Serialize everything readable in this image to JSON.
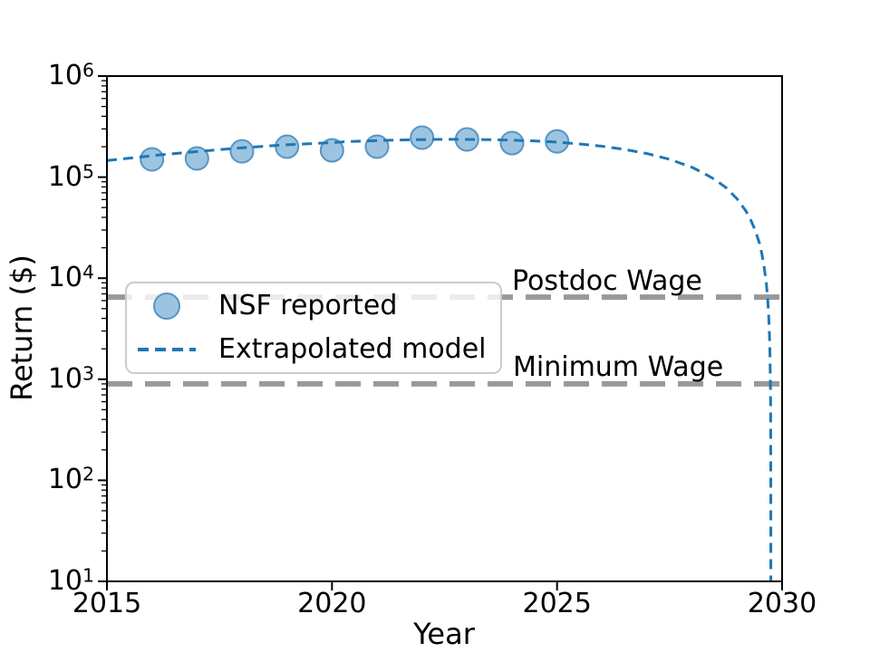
{
  "figure": {
    "xlabel": "Year",
    "ylabel": "Return ($)",
    "x_ticks": [
      2015,
      2020,
      2025,
      2030
    ],
    "y_tick_base": "10",
    "y_tick_exponents": [
      6,
      5,
      4,
      3,
      2,
      1
    ],
    "legend": {
      "items": [
        {
          "label": "NSF reported",
          "marker": "circle"
        },
        {
          "label": "Extrapolated model",
          "marker": "dashed-line"
        }
      ]
    },
    "annotations": [
      {
        "text": "Postdoc Wage",
        "value": 6500
      },
      {
        "text": "Minimum Wage",
        "value": 900
      }
    ]
  },
  "chart_data": {
    "type": "line",
    "title": "",
    "xlabel": "Year",
    "ylabel": "Return ($)",
    "yscale": "log",
    "xlim": [
      2015,
      2030
    ],
    "ylim": [
      10,
      1000000
    ],
    "grid": false,
    "legend_position": "center left",
    "series": [
      {
        "name": "NSF reported",
        "type": "scatter",
        "x": [
          2016,
          2017,
          2018,
          2019,
          2020,
          2021,
          2022,
          2023,
          2024,
          2025
        ],
        "y": [
          150000,
          153000,
          180000,
          200000,
          184000,
          200000,
          246000,
          236000,
          217000,
          226000
        ]
      },
      {
        "name": "Extrapolated model",
        "type": "dashed-line",
        "points": [
          [
            2015,
            146000
          ],
          [
            2015.5,
            154000
          ],
          [
            2016,
            163000
          ],
          [
            2016.5,
            171000
          ],
          [
            2017,
            179000
          ],
          [
            2017.5,
            187000
          ],
          [
            2018,
            195000
          ],
          [
            2018.5,
            202000
          ],
          [
            2019,
            209000
          ],
          [
            2019.5,
            214000
          ],
          [
            2020,
            220000
          ],
          [
            2020.5,
            226000
          ],
          [
            2021,
            230000
          ],
          [
            2021.5,
            233000
          ],
          [
            2022,
            235000
          ],
          [
            2022.5,
            237000
          ],
          [
            2023,
            236000
          ],
          [
            2023.5,
            235000
          ],
          [
            2024,
            232000
          ],
          [
            2024.5,
            228000
          ],
          [
            2025,
            222000
          ],
          [
            2025.5,
            213000
          ],
          [
            2026,
            202000
          ],
          [
            2026.5,
            188000
          ],
          [
            2027,
            171000
          ],
          [
            2027.5,
            150000
          ],
          [
            2028,
            125000
          ],
          [
            2028.25,
            110000
          ],
          [
            2028.5,
            95000
          ],
          [
            2028.75,
            79000
          ],
          [
            2029,
            61000
          ],
          [
            2029.1,
            53000
          ],
          [
            2029.2,
            46000
          ],
          [
            2029.3,
            38000
          ],
          [
            2029.4,
            30000
          ],
          [
            2029.5,
            22000
          ],
          [
            2029.55,
            17500
          ],
          [
            2029.6,
            13000
          ],
          [
            2029.65,
            8900
          ],
          [
            2029.68,
            6200
          ],
          [
            2029.7,
            4500
          ],
          [
            2029.72,
            2700
          ],
          [
            2029.73,
            1800
          ],
          [
            2029.74,
            900
          ],
          [
            2029.745,
            600
          ],
          [
            2029.748,
            180
          ],
          [
            2029.7495,
            45
          ],
          [
            2029.7499,
            10
          ]
        ]
      },
      {
        "name": "Postdoc Wage",
        "type": "hline",
        "y": 6500
      },
      {
        "name": "Minimum Wage",
        "type": "hline",
        "y": 900
      }
    ]
  },
  "colors": {
    "model_line": "#1f77b4",
    "scatter_fill": "#9cc4e0",
    "scatter_edge": "#5695c5",
    "wage_line": "#999999",
    "axis": "#000000"
  }
}
